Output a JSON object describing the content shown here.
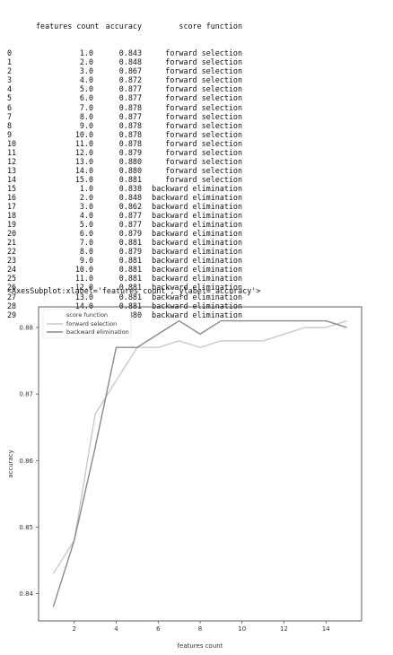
{
  "table": {
    "columns": [
      "features count",
      "accuracy",
      "score function"
    ],
    "rows": [
      {
        "idx": "0",
        "fc": "1.0",
        "acc": "0.843",
        "sf": "forward selection"
      },
      {
        "idx": "1",
        "fc": "2.0",
        "acc": "0.848",
        "sf": "forward selection"
      },
      {
        "idx": "2",
        "fc": "3.0",
        "acc": "0.867",
        "sf": "forward selection"
      },
      {
        "idx": "3",
        "fc": "4.0",
        "acc": "0.872",
        "sf": "forward selection"
      },
      {
        "idx": "4",
        "fc": "5.0",
        "acc": "0.877",
        "sf": "forward selection"
      },
      {
        "idx": "5",
        "fc": "6.0",
        "acc": "0.877",
        "sf": "forward selection"
      },
      {
        "idx": "6",
        "fc": "7.0",
        "acc": "0.878",
        "sf": "forward selection"
      },
      {
        "idx": "7",
        "fc": "8.0",
        "acc": "0.877",
        "sf": "forward selection"
      },
      {
        "idx": "8",
        "fc": "9.0",
        "acc": "0.878",
        "sf": "forward selection"
      },
      {
        "idx": "9",
        "fc": "10.0",
        "acc": "0.878",
        "sf": "forward selection"
      },
      {
        "idx": "10",
        "fc": "11.0",
        "acc": "0.878",
        "sf": "forward selection"
      },
      {
        "idx": "11",
        "fc": "12.0",
        "acc": "0.879",
        "sf": "forward selection"
      },
      {
        "idx": "12",
        "fc": "13.0",
        "acc": "0.880",
        "sf": "forward selection"
      },
      {
        "idx": "13",
        "fc": "14.0",
        "acc": "0.880",
        "sf": "forward selection"
      },
      {
        "idx": "14",
        "fc": "15.0",
        "acc": "0.881",
        "sf": "forward selection"
      },
      {
        "idx": "15",
        "fc": "1.0",
        "acc": "0.838",
        "sf": "backward elimination"
      },
      {
        "idx": "16",
        "fc": "2.0",
        "acc": "0.848",
        "sf": "backward elimination"
      },
      {
        "idx": "17",
        "fc": "3.0",
        "acc": "0.862",
        "sf": "backward elimination"
      },
      {
        "idx": "18",
        "fc": "4.0",
        "acc": "0.877",
        "sf": "backward elimination"
      },
      {
        "idx": "19",
        "fc": "5.0",
        "acc": "0.877",
        "sf": "backward elimination"
      },
      {
        "idx": "20",
        "fc": "6.0",
        "acc": "0.879",
        "sf": "backward elimination"
      },
      {
        "idx": "21",
        "fc": "7.0",
        "acc": "0.881",
        "sf": "backward elimination"
      },
      {
        "idx": "22",
        "fc": "8.0",
        "acc": "0.879",
        "sf": "backward elimination"
      },
      {
        "idx": "23",
        "fc": "9.0",
        "acc": "0.881",
        "sf": "backward elimination"
      },
      {
        "idx": "24",
        "fc": "10.0",
        "acc": "0.881",
        "sf": "backward elimination"
      },
      {
        "idx": "25",
        "fc": "11.0",
        "acc": "0.881",
        "sf": "backward elimination"
      },
      {
        "idx": "26",
        "fc": "12.0",
        "acc": "0.881",
        "sf": "backward elimination"
      },
      {
        "idx": "27",
        "fc": "13.0",
        "acc": "0.881",
        "sf": "backward elimination"
      },
      {
        "idx": "28",
        "fc": "14.0",
        "acc": "0.881",
        "sf": "backward elimination"
      },
      {
        "idx": "29",
        "fc": "15.0",
        "acc": "0.880",
        "sf": "backward elimination"
      }
    ]
  },
  "output_repr": "<AxesSubplot:xlabel='features count', ylabel='accuracy'>",
  "chart_data": {
    "type": "line",
    "xlabel": "features count",
    "ylabel": "accuracy",
    "xlim": [
      0.3,
      15.7
    ],
    "ylim": [
      0.8359,
      0.8831
    ],
    "xticks": [
      2,
      4,
      6,
      8,
      10,
      12,
      14
    ],
    "yticks": [
      0.84,
      0.85,
      0.86,
      0.87,
      0.88
    ],
    "ytick_labels": [
      "0.84",
      "0.85",
      "0.86",
      "0.87",
      "0.88"
    ],
    "grid": false,
    "legend": {
      "title": "score function",
      "position": "top-left"
    },
    "x": [
      1,
      2,
      3,
      4,
      5,
      6,
      7,
      8,
      9,
      10,
      11,
      12,
      13,
      14,
      15
    ],
    "series": [
      {
        "name": "forward selection",
        "color": "#c8cac8",
        "values": [
          0.843,
          0.848,
          0.867,
          0.872,
          0.877,
          0.877,
          0.878,
          0.877,
          0.878,
          0.878,
          0.878,
          0.879,
          0.88,
          0.88,
          0.881
        ]
      },
      {
        "name": "backward elimination",
        "color": "#8a8a8a",
        "values": [
          0.838,
          0.848,
          0.862,
          0.877,
          0.877,
          0.879,
          0.881,
          0.879,
          0.881,
          0.881,
          0.881,
          0.881,
          0.881,
          0.881,
          0.88
        ]
      }
    ]
  }
}
